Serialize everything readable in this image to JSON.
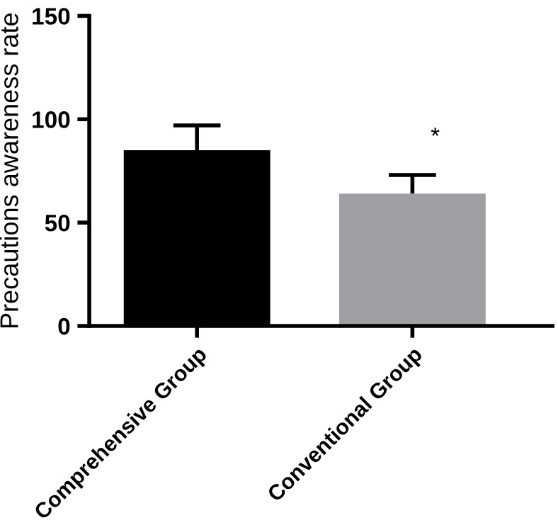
{
  "chart_data": {
    "type": "bar",
    "ylabel": "Precautions awareness rate",
    "categories": [
      "Comprehensive Group",
      "Conventional Group"
    ],
    "values": [
      85,
      64
    ],
    "errors": [
      [
        85,
        97
      ],
      [
        64,
        73
      ]
    ],
    "colors": [
      "#000000",
      "#a0a0a4"
    ],
    "ylim": [
      0,
      150
    ],
    "yticks": [
      0,
      50,
      100,
      150
    ],
    "annotations": [
      "*"
    ],
    "grid": false
  }
}
